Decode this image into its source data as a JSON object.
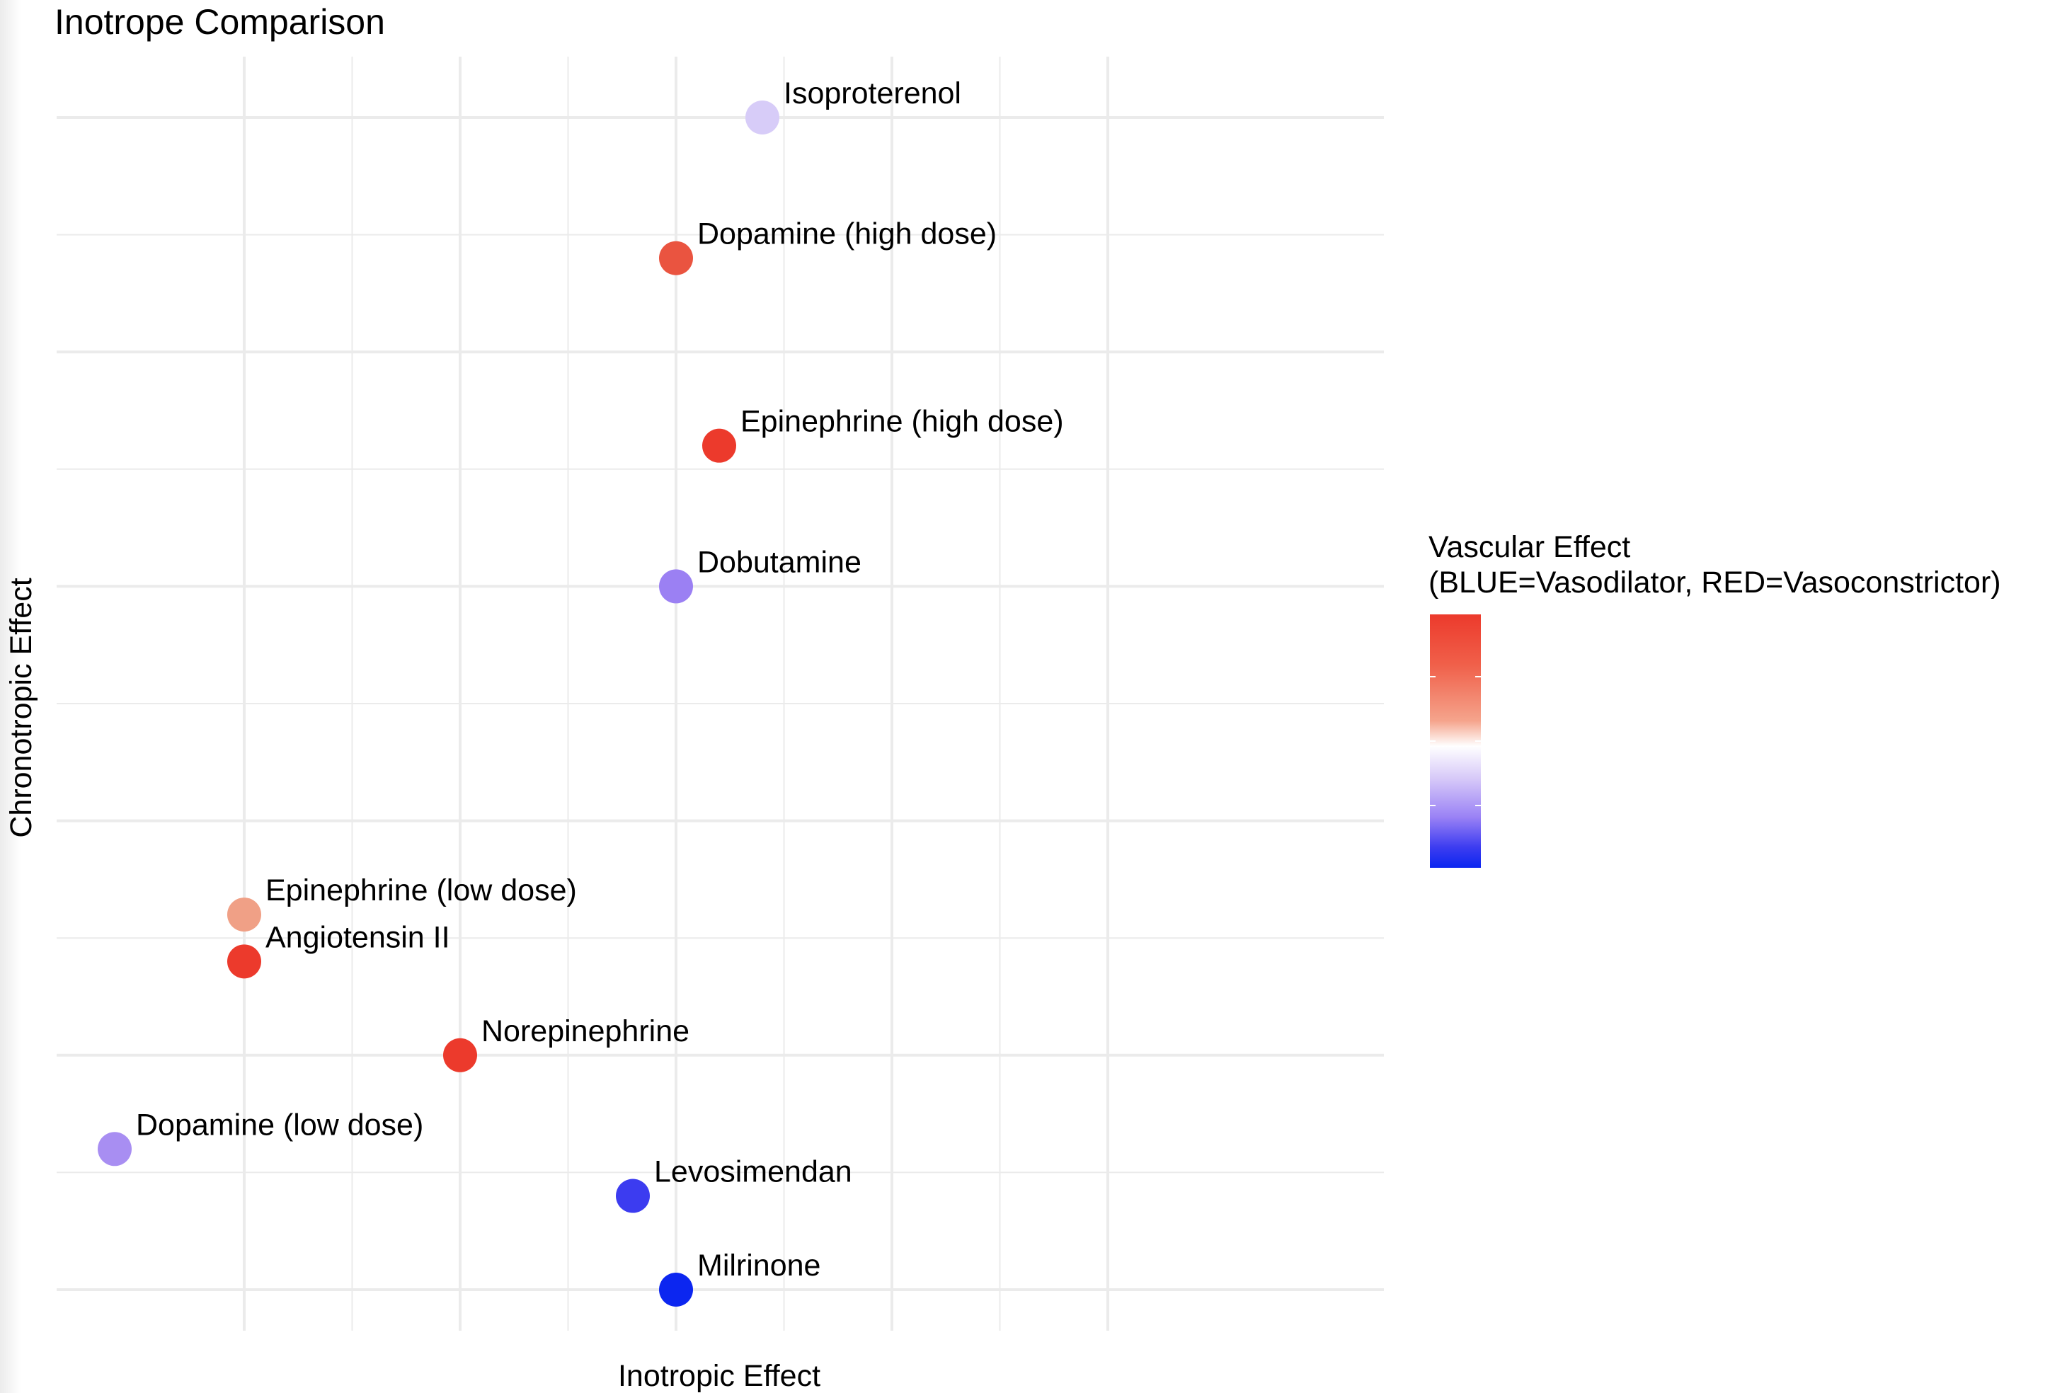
{
  "chart_data": {
    "type": "scatter",
    "title": "Inotrope Comparison",
    "xlabel": "Inotropic Effect",
    "ylabel": "Chronotropic Effect",
    "xlim": [
      -0.35,
      5.8
    ],
    "ylim": [
      -0.35,
      10.5
    ],
    "x_major_ticks": [
      1,
      2,
      3,
      4,
      5
    ],
    "y_major_ticks": [
      0,
      2,
      4,
      6,
      8,
      10
    ],
    "tick_labels_shown": false,
    "grid": true,
    "legend": {
      "title_line1": "Vascular Effect",
      "title_line2": "(BLUE=Vasodilator, RED=Vasoconstrictor)",
      "type": "colorbar",
      "placement": "right",
      "low_color": "#0c26f0",
      "mid_color": "#ffffff",
      "high_color": "#ec3a2c"
    },
    "points": [
      {
        "label": "Isoproterenol",
        "x": 3.4,
        "y": 10,
        "color": "#d7ccf8"
      },
      {
        "label": "Dopamine (high dose)",
        "x": 3.0,
        "y": 8.8,
        "color": "#ea5440"
      },
      {
        "label": "Epinephrine (high dose)",
        "x": 3.2,
        "y": 7.2,
        "color": "#ec3a2c"
      },
      {
        "label": "Dobutamine",
        "x": 3.0,
        "y": 6.0,
        "color": "#9b80f3"
      },
      {
        "label": "Epinephrine (low dose)",
        "x": 1.0,
        "y": 3.2,
        "color": "#f0a086"
      },
      {
        "label": "Angiotensin II",
        "x": 1.0,
        "y": 2.8,
        "color": "#ec3a2c"
      },
      {
        "label": "Norepinephrine",
        "x": 2.0,
        "y": 2.0,
        "color": "#ec3a2c"
      },
      {
        "label": "Dopamine (low dose)",
        "x": 0.4,
        "y": 1.2,
        "color": "#a88ef2"
      },
      {
        "label": "Levosimendan",
        "x": 2.8,
        "y": 0.8,
        "color": "#3c3cf0"
      },
      {
        "label": "Milrinone",
        "x": 3.0,
        "y": 0.0,
        "color": "#0c26f0"
      }
    ]
  }
}
